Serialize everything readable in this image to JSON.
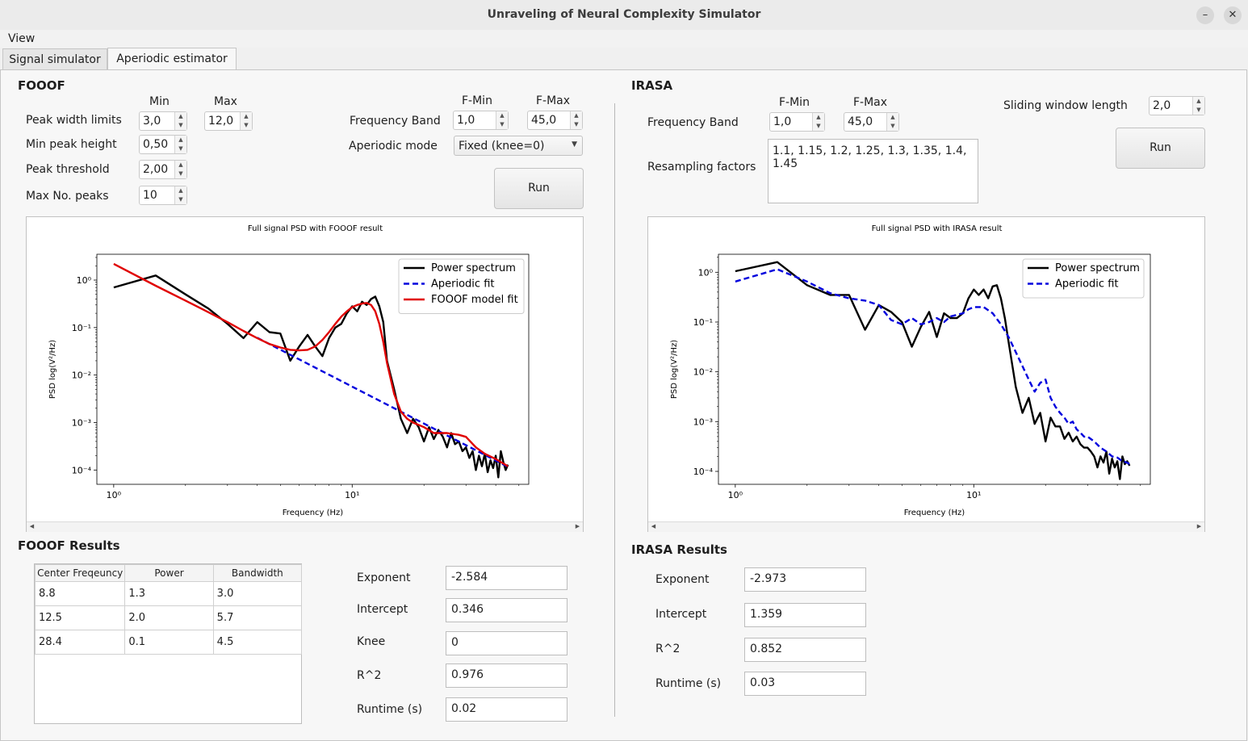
{
  "window": {
    "title": "Unraveling of Neural Complexity Simulator",
    "minimize": "–",
    "close": "✕"
  },
  "menu": [
    "View"
  ],
  "tabs": [
    "Signal simulator",
    "Aperiodic estimator"
  ],
  "fooof": {
    "heading": "FOOOF",
    "col_min": "Min",
    "col_max": "Max",
    "peak_width_label": "Peak width limits",
    "peak_width_min": "3,0",
    "peak_width_max": "12,0",
    "min_peak_height_label": "Min peak height",
    "min_peak_height": "0,50",
    "peak_threshold_label": "Peak threshold",
    "peak_threshold": "2,00",
    "max_peaks_label": "Max No. peaks",
    "max_peaks": "10",
    "fmin_header": "F-Min",
    "fmax_header": "F-Max",
    "freq_band_label": "Frequency Band",
    "fmin": "1,0",
    "fmax": "45,0",
    "aperiodic_mode_label": "Aperiodic mode",
    "aperiodic_mode": "Fixed (knee=0)",
    "run": "Run",
    "results_heading": "FOOOF Results",
    "table_headers": [
      "Center Freqeuncy",
      "Power",
      "Bandwidth"
    ],
    "table_rows": [
      [
        "8.8",
        "1.3",
        "3.0"
      ],
      [
        "12.5",
        "2.0",
        "5.7"
      ],
      [
        "28.4",
        "0.1",
        "4.5"
      ]
    ],
    "exponent_label": "Exponent",
    "exponent": "-2.584",
    "intercept_label": "Intercept",
    "intercept": "0.346",
    "knee_label": "Knee",
    "knee": "0",
    "r2_label": "R^2",
    "r2": "0.976",
    "runtime_label": "Runtime (s)",
    "runtime": "0.02"
  },
  "irasa": {
    "heading": "IRASA",
    "fmin_header": "F-Min",
    "fmax_header": "F-Max",
    "freq_band_label": "Frequency Band",
    "fmin": "1,0",
    "fmax": "45,0",
    "sliding_label": "Sliding window length",
    "sliding": "2,0",
    "resampling_label": "Resampling factors",
    "resampling": "1.1, 1.15, 1.2, 1.25, 1.3, 1.35, 1.4, 1.45",
    "run": "Run",
    "results_heading": "IRASA Results",
    "exponent_label": "Exponent",
    "exponent": "-2.973",
    "intercept_label": "Intercept",
    "intercept": "1.359",
    "r2_label": "R^2",
    "r2": "0.852",
    "runtime_label": "Runtime (s)",
    "runtime": "0.03"
  },
  "chart_data": [
    {
      "type": "line",
      "title": "Full signal PSD with FOOOF result",
      "xlabel": "Frequency (Hz)",
      "ylabel": "PSD log(V²/Hz)",
      "xscale": "log",
      "yscale": "log",
      "xlim": [
        0.85,
        55
      ],
      "ylim": [
        5e-05,
        3.5
      ],
      "xticks": [
        "10⁰",
        "10¹"
      ],
      "yticks": [
        "10⁰",
        "10⁻¹",
        "10⁻²",
        "10⁻³",
        "10⁻⁴"
      ],
      "legend_position": "top-right",
      "series": [
        {
          "name": "Power spectrum",
          "color": "#000000",
          "dash": "solid",
          "x": [
            1,
            1.5,
            2,
            2.5,
            3,
            3.5,
            4,
            4.5,
            5,
            5.5,
            6,
            6.5,
            7,
            7.5,
            8,
            8.5,
            9,
            9.5,
            10,
            10.5,
            11,
            11.5,
            12,
            12.5,
            13,
            13.5,
            14,
            15,
            16,
            17,
            18,
            19,
            20,
            21,
            22,
            23,
            24,
            25,
            26,
            27,
            28,
            29,
            30,
            31,
            32,
            33,
            34,
            35,
            36,
            37,
            38,
            39,
            40,
            41,
            42,
            43,
            44,
            45
          ],
          "y": [
            0.7,
            1.25,
            0.5,
            0.25,
            0.12,
            0.06,
            0.13,
            0.08,
            0.075,
            0.02,
            0.04,
            0.07,
            0.04,
            0.025,
            0.06,
            0.1,
            0.12,
            0.2,
            0.28,
            0.22,
            0.35,
            0.3,
            0.4,
            0.45,
            0.28,
            0.13,
            0.02,
            0.005,
            0.0012,
            0.0006,
            0.0012,
            0.0008,
            0.0004,
            0.0008,
            0.00045,
            0.0007,
            0.0005,
            0.0003,
            0.0006,
            0.00035,
            0.0004,
            0.00025,
            0.0003,
            0.00018,
            0.00025,
            0.0001,
            0.0002,
            0.00012,
            0.00022,
            9e-05,
            0.00016,
            0.00011,
            0.0002,
            7e-05,
            0.00025,
            0.00015,
            0.0001,
            0.00013
          ]
        },
        {
          "name": "Aperiodic fit",
          "color": "#0000dd",
          "dash": "dashed",
          "x": [
            4,
            45
          ],
          "y": [
            0.061,
            0.000117
          ]
        },
        {
          "name": "FOOOF model fit",
          "color": "#e00000",
          "dash": "solid",
          "x": [
            1,
            1.5,
            2,
            2.5,
            3,
            3.5,
            4,
            4.5,
            5,
            5.5,
            6,
            6.5,
            7,
            7.5,
            8,
            8.5,
            9,
            9.5,
            10,
            10.5,
            11,
            11.5,
            12,
            12.5,
            13,
            13.5,
            14,
            15,
            16,
            17,
            18,
            20,
            22,
            25,
            28,
            30,
            33,
            36,
            40,
            45
          ],
          "y": [
            2.2,
            0.76,
            0.37,
            0.21,
            0.13,
            0.085,
            0.06,
            0.045,
            0.038,
            0.034,
            0.033,
            0.034,
            0.04,
            0.055,
            0.08,
            0.12,
            0.17,
            0.22,
            0.27,
            0.3,
            0.32,
            0.33,
            0.3,
            0.22,
            0.12,
            0.05,
            0.018,
            0.004,
            0.0017,
            0.0012,
            0.001,
            0.0008,
            0.0006,
            0.0006,
            0.00055,
            0.0005,
            0.0003,
            0.00022,
            0.00017,
            0.00012
          ]
        }
      ]
    },
    {
      "type": "line",
      "title": "Full signal PSD with IRASA result",
      "xlabel": "Frequency (Hz)",
      "ylabel": "PSD log(V²/Hz)",
      "xscale": "log",
      "yscale": "log",
      "xlim": [
        0.85,
        55
      ],
      "ylim": [
        5.5e-05,
        2.3
      ],
      "xticks": [
        "10⁰",
        "10¹"
      ],
      "yticks": [
        "10⁰",
        "10⁻¹",
        "10⁻²",
        "10⁻³",
        "10⁻⁴"
      ],
      "legend_position": "top-right",
      "series": [
        {
          "name": "Power spectrum",
          "color": "#000000",
          "dash": "solid",
          "x": [
            1,
            1.5,
            2,
            2.5,
            3,
            3.5,
            4,
            4.5,
            5,
            5.5,
            6,
            6.5,
            7,
            7.5,
            8,
            8.5,
            9,
            9.5,
            10,
            10.5,
            11,
            11.5,
            12,
            12.5,
            13,
            13.5,
            14,
            15,
            16,
            17,
            18,
            19,
            20,
            21,
            22,
            23,
            24,
            25,
            26,
            27,
            28,
            29,
            30,
            31,
            32,
            33,
            34,
            35,
            36,
            37,
            38,
            39,
            40,
            41,
            42,
            43,
            44,
            45
          ],
          "y": [
            1.05,
            1.6,
            0.55,
            0.35,
            0.35,
            0.07,
            0.22,
            0.16,
            0.1,
            0.032,
            0.08,
            0.16,
            0.05,
            0.15,
            0.12,
            0.12,
            0.15,
            0.3,
            0.45,
            0.35,
            0.45,
            0.3,
            0.52,
            0.55,
            0.3,
            0.12,
            0.04,
            0.005,
            0.0015,
            0.003,
            0.0009,
            0.0015,
            0.0004,
            0.0012,
            0.0008,
            0.0008,
            0.00045,
            0.0006,
            0.0004,
            0.0005,
            0.00035,
            0.0003,
            0.0003,
            0.00025,
            0.0002,
            0.00012,
            0.0002,
            0.00015,
            0.00025,
            9e-05,
            0.00018,
            0.00012,
            0.00016,
            7e-05,
            0.0002,
            0.00014,
            0.00016,
            0.00013
          ]
        },
        {
          "name": "Aperiodic fit",
          "color": "#0000dd",
          "dash": "dashed",
          "x": [
            1,
            1.5,
            2,
            2.5,
            3,
            3.5,
            4,
            4.5,
            5,
            5.5,
            6,
            6.5,
            7,
            7.5,
            8,
            8.5,
            9,
            9.5,
            10,
            11,
            12,
            13,
            14,
            15,
            16,
            17,
            18,
            19,
            20,
            21,
            22,
            23,
            24,
            25,
            26,
            27,
            28,
            29,
            30,
            32,
            34,
            36,
            38,
            40,
            42,
            44,
            45
          ],
          "y": [
            0.65,
            1.15,
            0.65,
            0.38,
            0.3,
            0.27,
            0.22,
            0.11,
            0.09,
            0.12,
            0.09,
            0.1,
            0.12,
            0.1,
            0.13,
            0.14,
            0.15,
            0.18,
            0.2,
            0.2,
            0.15,
            0.09,
            0.05,
            0.025,
            0.013,
            0.007,
            0.004,
            0.006,
            0.007,
            0.003,
            0.002,
            0.0015,
            0.0012,
            0.0009,
            0.001,
            0.0007,
            0.0006,
            0.0005,
            0.0005,
            0.0004,
            0.0003,
            0.00025,
            0.0002,
            0.00019,
            0.00016,
            0.00015,
            0.00014
          ]
        }
      ]
    }
  ]
}
